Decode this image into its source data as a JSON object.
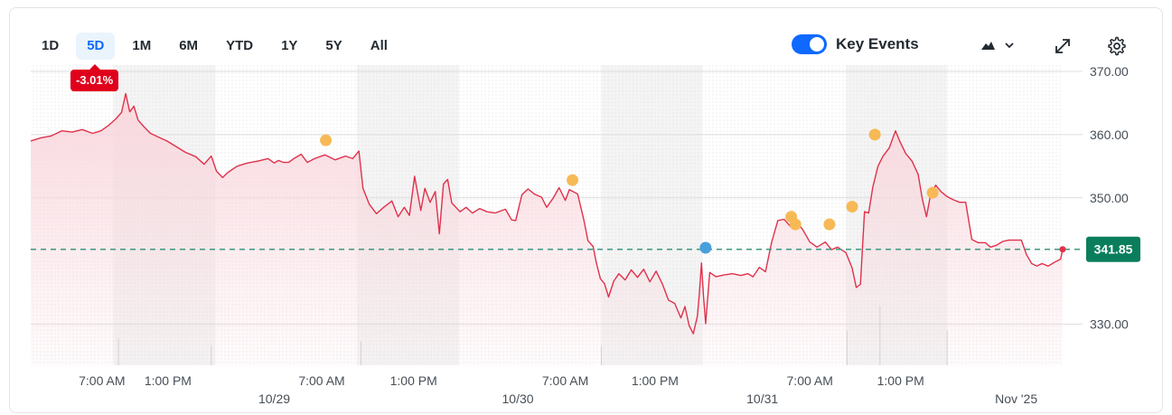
{
  "range_tabs": {
    "items": [
      {
        "label": "1D"
      },
      {
        "label": "5D"
      },
      {
        "label": "1M"
      },
      {
        "label": "6M"
      },
      {
        "label": "YTD"
      },
      {
        "label": "1Y"
      },
      {
        "label": "5Y"
      },
      {
        "label": "All"
      }
    ],
    "selected": "5D"
  },
  "toolbar": {
    "key_events_label": "Key Events",
    "key_events_on": true,
    "chart_type_icon": "mountain-chart-icon",
    "expand_icon": "expand-icon",
    "settings_icon": "gear-icon"
  },
  "change_badge": "-3.01%",
  "colors": {
    "line": "#e0314b",
    "area_top": "#f9d6dc",
    "baseline": "#3c9a82",
    "price_tag": "#0a7e5c",
    "event_dividend": "#f7b955",
    "event_blue": "#4a9fdb",
    "badge": "#e0001b"
  },
  "chart_data": {
    "type": "area",
    "y_ticks": [
      370,
      360,
      350,
      330
    ],
    "y_tick_labels": [
      "370.00",
      "360.00",
      "350.00",
      "330.00"
    ],
    "ylim": [
      323.5,
      371
    ],
    "xlim": [
      0,
      1
    ],
    "x_tick_labels": [
      {
        "label": "7:00 AM",
        "x": 0.069
      },
      {
        "label": "1:00 PM",
        "x": 0.133
      },
      {
        "label": "7:00 AM",
        "x": 0.282
      },
      {
        "label": "1:00 PM",
        "x": 0.371
      },
      {
        "label": "7:00 AM",
        "x": 0.518
      },
      {
        "label": "1:00 PM",
        "x": 0.605
      },
      {
        "label": "7:00 AM",
        "x": 0.755
      },
      {
        "label": "1:00 PM",
        "x": 0.843
      }
    ],
    "date_labels": [
      {
        "label": "10/29",
        "x": 0.236
      },
      {
        "label": "10/30",
        "x": 0.472
      },
      {
        "label": "10/31",
        "x": 0.709
      },
      {
        "label": "Nov '25",
        "x": 0.955
      }
    ],
    "shaded_bands": [
      [
        0.08,
        0.179
      ],
      [
        0.316,
        0.415
      ],
      [
        0.553,
        0.651
      ],
      [
        0.79,
        0.888
      ]
    ],
    "previous_close": 341.85,
    "last_price_label": "341.85",
    "grid": true,
    "series": [
      {
        "values": [
          [
            0.0,
            359.0
          ],
          [
            0.01,
            359.5
          ],
          [
            0.02,
            359.8
          ],
          [
            0.03,
            360.6
          ],
          [
            0.04,
            360.4
          ],
          [
            0.05,
            360.8
          ],
          [
            0.06,
            360.2
          ],
          [
            0.068,
            360.6
          ],
          [
            0.075,
            361.4
          ],
          [
            0.082,
            362.4
          ],
          [
            0.088,
            363.5
          ],
          [
            0.092,
            366.5
          ],
          [
            0.096,
            363.6
          ],
          [
            0.1,
            364.5
          ],
          [
            0.104,
            362.3
          ],
          [
            0.11,
            361.2
          ],
          [
            0.116,
            360.2
          ],
          [
            0.124,
            359.6
          ],
          [
            0.132,
            359.0
          ],
          [
            0.14,
            358.2
          ],
          [
            0.15,
            357.2
          ],
          [
            0.16,
            356.5
          ],
          [
            0.168,
            355.3
          ],
          [
            0.175,
            356.6
          ],
          [
            0.18,
            354.2
          ],
          [
            0.186,
            353.2
          ],
          [
            0.191,
            354.0
          ],
          [
            0.2,
            355.0
          ],
          [
            0.21,
            355.5
          ],
          [
            0.22,
            355.8
          ],
          [
            0.23,
            356.2
          ],
          [
            0.236,
            355.5
          ],
          [
            0.24,
            355.9
          ],
          [
            0.245,
            355.6
          ],
          [
            0.25,
            355.6
          ],
          [
            0.255,
            356.2
          ],
          [
            0.262,
            356.9
          ],
          [
            0.268,
            355.6
          ],
          [
            0.275,
            356.2
          ],
          [
            0.285,
            356.8
          ],
          [
            0.295,
            356.0
          ],
          [
            0.305,
            356.6
          ],
          [
            0.312,
            356.2
          ],
          [
            0.318,
            357.4
          ],
          [
            0.322,
            351.5
          ],
          [
            0.328,
            349.0
          ],
          [
            0.335,
            347.5
          ],
          [
            0.342,
            348.5
          ],
          [
            0.35,
            349.5
          ],
          [
            0.356,
            347.0
          ],
          [
            0.362,
            348.5
          ],
          [
            0.367,
            347.2
          ],
          [
            0.372,
            353.4
          ],
          [
            0.378,
            348.0
          ],
          [
            0.382,
            351.5
          ],
          [
            0.387,
            349.3
          ],
          [
            0.392,
            351.0
          ],
          [
            0.396,
            344.3
          ],
          [
            0.4,
            352.2
          ],
          [
            0.404,
            352.9
          ],
          [
            0.408,
            349.2
          ],
          [
            0.416,
            347.8
          ],
          [
            0.422,
            348.5
          ],
          [
            0.428,
            347.6
          ],
          [
            0.435,
            348.3
          ],
          [
            0.442,
            347.8
          ],
          [
            0.45,
            347.6
          ],
          [
            0.46,
            348.2
          ],
          [
            0.466,
            346.5
          ],
          [
            0.47,
            346.4
          ],
          [
            0.476,
            350.5
          ],
          [
            0.482,
            351.4
          ],
          [
            0.488,
            350.6
          ],
          [
            0.495,
            350.1
          ],
          [
            0.5,
            348.5
          ],
          [
            0.506,
            349.9
          ],
          [
            0.512,
            351.6
          ],
          [
            0.518,
            349.6
          ],
          [
            0.522,
            351.3
          ],
          [
            0.53,
            350.6
          ],
          [
            0.536,
            346.5
          ],
          [
            0.54,
            343.2
          ],
          [
            0.545,
            342.3
          ],
          [
            0.548,
            339.8
          ],
          [
            0.552,
            337.2
          ],
          [
            0.556,
            336.4
          ],
          [
            0.56,
            334.3
          ],
          [
            0.565,
            336.8
          ],
          [
            0.57,
            338.0
          ],
          [
            0.576,
            337.0
          ],
          [
            0.582,
            338.6
          ],
          [
            0.588,
            337.4
          ],
          [
            0.594,
            338.7
          ],
          [
            0.6,
            336.7
          ],
          [
            0.606,
            338.4
          ],
          [
            0.612,
            336.4
          ],
          [
            0.618,
            333.8
          ],
          [
            0.624,
            333.3
          ],
          [
            0.63,
            331.0
          ],
          [
            0.634,
            332.8
          ],
          [
            0.638,
            329.8
          ],
          [
            0.642,
            328.5
          ],
          [
            0.646,
            331.2
          ],
          [
            0.648,
            334.9
          ],
          [
            0.65,
            339.7
          ],
          [
            0.652,
            334.3
          ],
          [
            0.654,
            330.1
          ],
          [
            0.658,
            338.2
          ],
          [
            0.664,
            337.5
          ],
          [
            0.672,
            337.8
          ],
          [
            0.68,
            338.0
          ],
          [
            0.688,
            337.7
          ],
          [
            0.695,
            338.0
          ],
          [
            0.7,
            337.5
          ],
          [
            0.706,
            339.0
          ],
          [
            0.712,
            338.3
          ],
          [
            0.718,
            343.0
          ],
          [
            0.724,
            346.4
          ],
          [
            0.73,
            346.6
          ],
          [
            0.736,
            345.5
          ],
          [
            0.742,
            346.2
          ],
          [
            0.748,
            345.0
          ],
          [
            0.755,
            343.0
          ],
          [
            0.762,
            342.2
          ],
          [
            0.77,
            343.0
          ],
          [
            0.776,
            341.8
          ],
          [
            0.782,
            342.2
          ],
          [
            0.79,
            341.3
          ],
          [
            0.796,
            338.9
          ],
          [
            0.8,
            335.8
          ],
          [
            0.804,
            336.3
          ],
          [
            0.808,
            347.8
          ],
          [
            0.812,
            347.6
          ],
          [
            0.816,
            351.7
          ],
          [
            0.821,
            355.0
          ],
          [
            0.826,
            356.6
          ],
          [
            0.832,
            357.9
          ],
          [
            0.838,
            360.6
          ],
          [
            0.842,
            359.0
          ],
          [
            0.848,
            357.0
          ],
          [
            0.854,
            355.8
          ],
          [
            0.86,
            353.7
          ],
          [
            0.864,
            349.8
          ],
          [
            0.868,
            347.0
          ],
          [
            0.872,
            350.5
          ],
          [
            0.877,
            352.0
          ],
          [
            0.882,
            351.0
          ],
          [
            0.888,
            350.2
          ],
          [
            0.894,
            349.7
          ],
          [
            0.9,
            349.3
          ],
          [
            0.906,
            349.3
          ],
          [
            0.912,
            343.4
          ],
          [
            0.918,
            342.9
          ],
          [
            0.925,
            342.9
          ],
          [
            0.93,
            342.2
          ],
          [
            0.936,
            342.5
          ],
          [
            0.942,
            343.1
          ],
          [
            0.948,
            343.3
          ],
          [
            0.955,
            343.3
          ],
          [
            0.96,
            343.3
          ],
          [
            0.965,
            341.0
          ],
          [
            0.97,
            339.6
          ],
          [
            0.975,
            339.2
          ],
          [
            0.98,
            339.6
          ],
          [
            0.986,
            339.2
          ],
          [
            0.992,
            339.8
          ],
          [
            0.998,
            340.3
          ],
          [
            1.0,
            341.85
          ]
        ],
        "markers": [
          {
            "x": 0.286,
            "y": 359.1,
            "kind": "dividend"
          },
          {
            "x": 0.525,
            "y": 352.8,
            "kind": "dividend"
          },
          {
            "x": 0.654,
            "y": 342.1,
            "kind": "news"
          },
          {
            "x": 0.737,
            "y": 347.0,
            "kind": "dividend"
          },
          {
            "x": 0.741,
            "y": 345.8,
            "kind": "dividend"
          },
          {
            "x": 0.774,
            "y": 345.8,
            "kind": "dividend"
          },
          {
            "x": 0.796,
            "y": 348.6,
            "kind": "dividend"
          },
          {
            "x": 0.818,
            "y": 360.0,
            "kind": "dividend"
          },
          {
            "x": 0.874,
            "y": 350.8,
            "kind": "dividend"
          }
        ]
      }
    ],
    "volume_spikes": [
      [
        0.085,
        0.25
      ],
      [
        0.175,
        0.18
      ],
      [
        0.32,
        0.22
      ],
      [
        0.553,
        0.18
      ],
      [
        0.791,
        0.32
      ],
      [
        0.823,
        0.55
      ],
      [
        0.888,
        0.32
      ]
    ]
  }
}
